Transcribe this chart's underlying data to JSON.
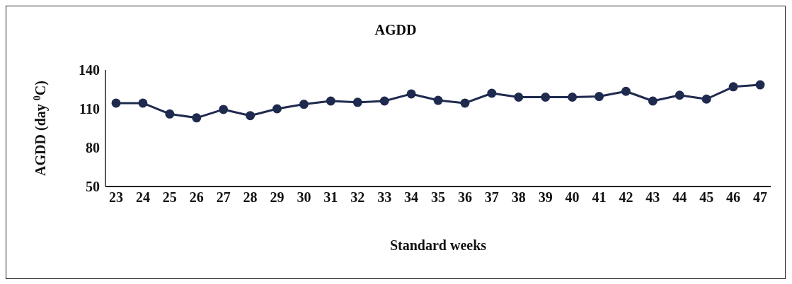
{
  "chart_data": {
    "type": "line",
    "title": "AGDD",
    "xlabel": "Standard weeks",
    "ylabel": "AGDD (day $^{0}$C)",
    "categories": [
      "23",
      "24",
      "25",
      "26",
      "27",
      "28",
      "29",
      "30",
      "31",
      "32",
      "33",
      "34",
      "35",
      "36",
      "37",
      "38",
      "39",
      "40",
      "41",
      "42",
      "43",
      "44",
      "45",
      "46",
      "47"
    ],
    "series": [
      {
        "color": "#1f2a4f",
        "values": [
          114.4,
          114.4,
          106,
          103,
          109.5,
          104.7,
          110,
          113.5,
          116,
          115,
          116,
          121.5,
          116.5,
          114.4,
          122,
          119,
          119,
          119,
          119.5,
          123.5,
          116,
          120.5,
          117.5,
          127,
          128.5
        ]
      }
    ],
    "ylim": [
      50,
      140
    ],
    "yticks": [
      50,
      80,
      110,
      140
    ],
    "legend": false,
    "marker": "circle",
    "line_style": "solid"
  }
}
